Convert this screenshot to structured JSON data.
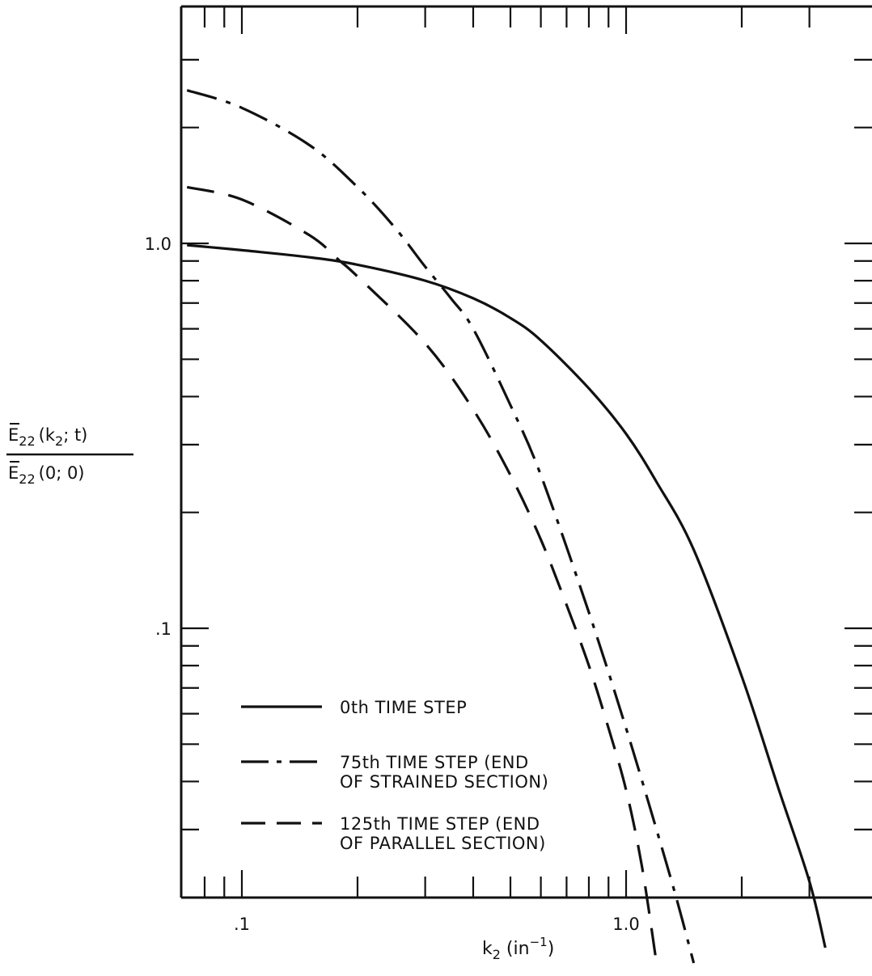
{
  "chart_data": {
    "type": "line",
    "title": "",
    "xlabel": {
      "base": "k",
      "sub": "2",
      "units": " (in",
      "sup": "−1",
      "close": ")"
    },
    "ylabel": {
      "numerator": {
        "base": "E",
        "sub": "22",
        "args": "(k",
        "args_sub": "2",
        "args_rest": "; t)"
      },
      "denominator": {
        "base": "E",
        "sub": "22",
        "args": "(0; 0)"
      }
    },
    "x_scale": "log",
    "y_scale": "log",
    "xlim": [
      0.072,
      3.5
    ],
    "ylim": [
      0.012,
      5.0
    ],
    "x_tick_labels": [
      ".1",
      "1.0"
    ],
    "y_tick_labels": [
      ".1",
      "1.0"
    ],
    "grid": false,
    "legend_position": "bottom-left",
    "series": [
      {
        "name": "0th TIME STEP",
        "style": "solid",
        "x": [
          0.072,
          0.1,
          0.15,
          0.2,
          0.3,
          0.4,
          0.5,
          0.6,
          0.8,
          1.0,
          1.2,
          1.5,
          2.0,
          2.5,
          3.0,
          3.3
        ],
        "y": [
          0.99,
          0.96,
          0.92,
          0.88,
          0.8,
          0.72,
          0.64,
          0.56,
          0.42,
          0.32,
          0.24,
          0.16,
          0.075,
          0.038,
          0.022,
          0.0148
        ]
      },
      {
        "name": "75th TIME STEP (END\nOF STRAINED SECTION)",
        "style": "dashdot",
        "x": [
          0.072,
          0.1,
          0.15,
          0.2,
          0.25,
          0.3,
          0.35,
          0.4,
          0.5,
          0.6,
          0.8,
          1.0,
          1.2,
          1.35,
          1.5
        ],
        "y": [
          2.5,
          2.25,
          1.8,
          1.4,
          1.1,
          0.87,
          0.72,
          0.6,
          0.38,
          0.25,
          0.11,
          0.055,
          0.03,
          0.02,
          0.0135
        ]
      },
      {
        "name": "125th TIME STEP (END\nOF PARALLEL SECTION)",
        "style": "dashed",
        "x": [
          0.072,
          0.1,
          0.15,
          0.18,
          0.2,
          0.3,
          0.4,
          0.5,
          0.6,
          0.7,
          0.8,
          0.9,
          1.0,
          1.1,
          1.2
        ],
        "y": [
          1.4,
          1.3,
          1.05,
          0.9,
          0.82,
          0.55,
          0.37,
          0.25,
          0.17,
          0.115,
          0.08,
          0.055,
          0.038,
          0.024,
          0.0135
        ]
      }
    ]
  }
}
